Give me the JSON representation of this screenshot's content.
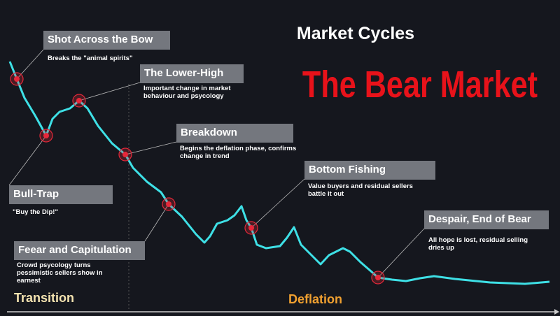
{
  "header": {
    "title": "Market Cycles",
    "subtitle": "The Bear Market"
  },
  "phases": [
    "Transition",
    "Deflation"
  ],
  "stages": [
    {
      "label": "Shot Across the Bow",
      "description": "Breaks the \"animal spirits\""
    },
    {
      "label": "The Lower-High",
      "description": "Important change in market behaviour and psycology"
    },
    {
      "label": "Breakdown",
      "description": "Begins the deflation phase, confirms change in trend"
    },
    {
      "label": "Bottom Fishing",
      "description": "Value buyers and residual sellers battle it out"
    },
    {
      "label": "Despair, End of Bear",
      "description": "All hope is lost, residual selling dries up"
    },
    {
      "label": "Bull-Trap",
      "description": "\"Buy the Dip!\""
    },
    {
      "label": "Feear and Capitulation",
      "description": "Crowd psycology turns pessimistic sellers show in earnest"
    }
  ]
}
